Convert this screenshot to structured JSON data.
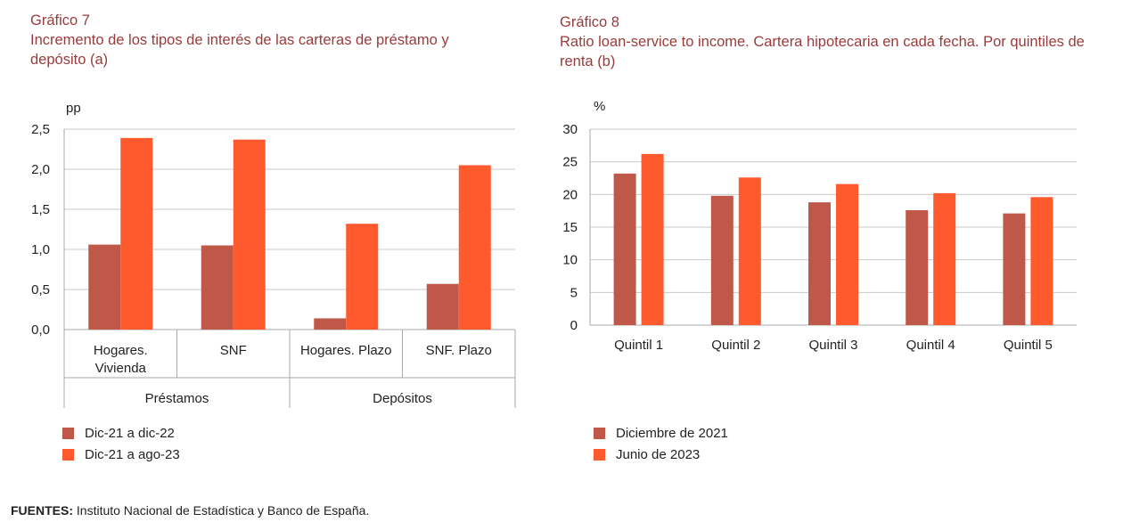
{
  "colors": {
    "series1": "#c0584a",
    "series2": "#ff5a2e",
    "grid": "#c8c8c8",
    "axis": "#aaaaaa",
    "title": "#9a3b3b"
  },
  "sources": {
    "label": "FUENTES:",
    "text": "Instituto Nacional de Estadística y Banco de España."
  },
  "chart_data": [
    {
      "type": "bar",
      "number": "Gráfico 7",
      "title": "Incremento de los tipos de interés de las carteras de préstamo y depósito (a)",
      "ylabel": "pp",
      "ylim": [
        0,
        2.5
      ],
      "yticks": [
        "0,0",
        "0,5",
        "1,0",
        "1,5",
        "2,0",
        "2,5"
      ],
      "categories": [
        "Hogares.\nVivienda",
        "SNF",
        "Hogares. Plazo",
        "SNF. Plazo"
      ],
      "groups": [
        {
          "label": "Préstamos",
          "span": [
            0,
            1
          ]
        },
        {
          "label": "Depósitos",
          "span": [
            2,
            3
          ]
        }
      ],
      "series": [
        {
          "name": "Dic-21 a dic-22",
          "values": [
            1.06,
            1.05,
            0.14,
            0.57
          ]
        },
        {
          "name": "Dic-21 a ago-23",
          "values": [
            2.39,
            2.37,
            1.32,
            2.05
          ]
        }
      ],
      "grid": true,
      "legend": "bottom-left"
    },
    {
      "type": "bar",
      "number": "Gráfico 8",
      "title": "Ratio loan-service to income. Cartera hipotecaria en cada fecha. Por quintiles de renta (b)",
      "ylabel": "%",
      "ylim": [
        0,
        30
      ],
      "yticks": [
        "0",
        "5",
        "10",
        "15",
        "20",
        "25",
        "30"
      ],
      "categories": [
        "Quintil 1",
        "Quintil 2",
        "Quintil 3",
        "Quintil 4",
        "Quintil 5"
      ],
      "series": [
        {
          "name": "Diciembre de 2021",
          "values": [
            23.2,
            19.8,
            18.8,
            17.6,
            17.1
          ]
        },
        {
          "name": "Junio de 2023",
          "values": [
            26.2,
            22.6,
            21.6,
            20.2,
            19.6
          ]
        }
      ],
      "grid": true,
      "legend": "bottom-left"
    }
  ]
}
